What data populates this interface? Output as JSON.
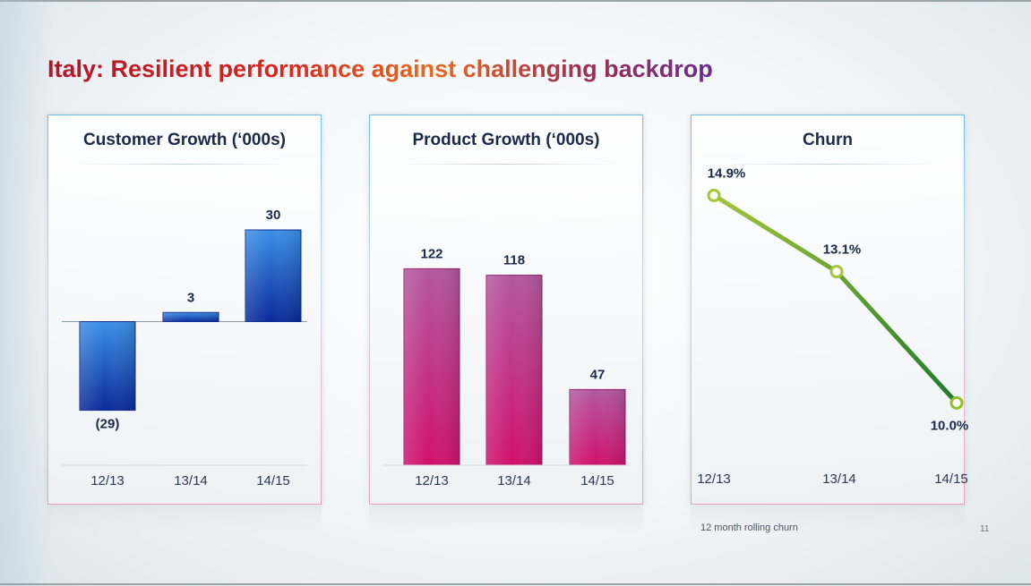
{
  "slide": {
    "title": "Italy: Resilient performance against challenging backdrop",
    "footnote": "12 month rolling churn",
    "page_number": "11"
  },
  "colors": {
    "customer_bar": "#1a5fc8",
    "product_bar": "#c8137a",
    "churn_line": "#7fb22a"
  },
  "chart_data": [
    {
      "type": "bar",
      "title": "Customer Growth (‘000s)",
      "categories": [
        "12/13",
        "13/14",
        "14/15"
      ],
      "values": [
        -29,
        3,
        30
      ],
      "value_labels": [
        "(29)",
        "3",
        "30"
      ],
      "ylim": [
        -42,
        42
      ],
      "grid": false
    },
    {
      "type": "bar",
      "title": "Product Growth (‘000s)",
      "categories": [
        "12/13",
        "13/14",
        "14/15"
      ],
      "values": [
        122,
        118,
        47
      ],
      "value_labels": [
        "122",
        "118",
        "47"
      ],
      "ylim": [
        0,
        150
      ],
      "grid": false
    },
    {
      "type": "line",
      "title": "Churn",
      "categories": [
        "12/13",
        "13/14",
        "14/15"
      ],
      "values": [
        14.9,
        13.1,
        10.0
      ],
      "value_labels": [
        "14.9%",
        "13.1%",
        "10.0%"
      ],
      "ylim": [
        9.5,
        15.5
      ],
      "grid": false
    }
  ]
}
